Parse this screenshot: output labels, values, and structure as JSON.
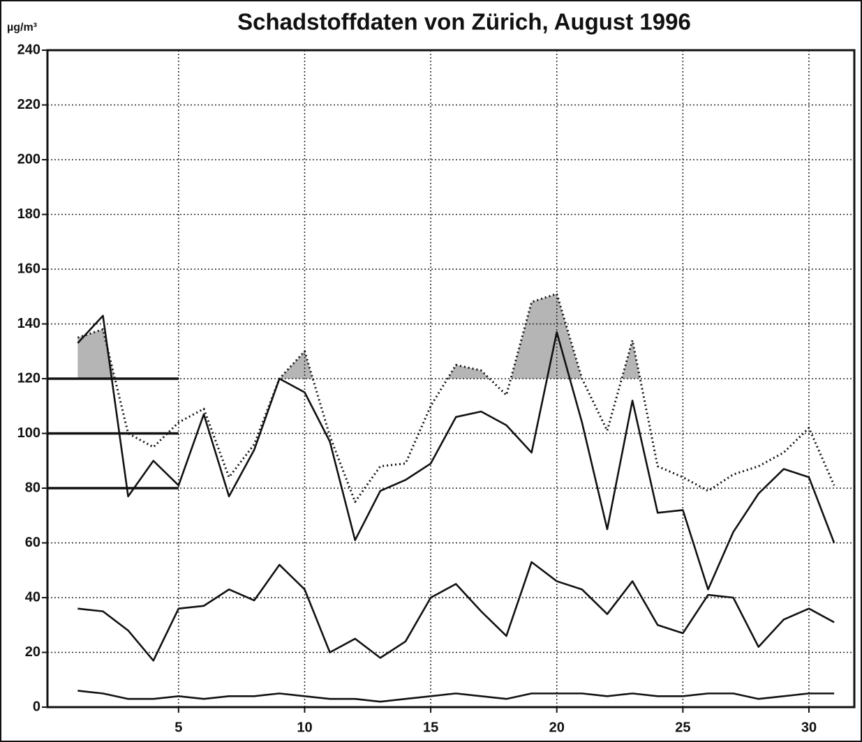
{
  "chart_data": {
    "type": "line",
    "title": "Schadstoffdaten von Zürich, August 1996",
    "y_label": "µg/m³",
    "x": [
      1,
      2,
      3,
      4,
      5,
      6,
      7,
      8,
      9,
      10,
      11,
      12,
      13,
      14,
      15,
      16,
      17,
      18,
      19,
      20,
      21,
      22,
      23,
      24,
      25,
      26,
      27,
      28,
      29,
      30,
      31
    ],
    "xlim": [
      -0.2,
      31.8
    ],
    "xticks": [
      5,
      10,
      15,
      20,
      25,
      30
    ],
    "ylim": [
      0,
      240
    ],
    "yticks": [
      0,
      20,
      40,
      60,
      80,
      100,
      120,
      140,
      160,
      180,
      200,
      220,
      240
    ],
    "grid": true,
    "thresholds": [
      120,
      100,
      80
    ],
    "threshold_until": 5,
    "shade_above": 120,
    "shade_color": "#b5b5b5",
    "series": [
      {
        "color": "#111111",
        "style": "dotted",
        "shade": true,
        "values": [
          135,
          138,
          100,
          95,
          104,
          109,
          84,
          96,
          120,
          130,
          99,
          75,
          88,
          89,
          110,
          125,
          123,
          114,
          148,
          151,
          120,
          101,
          134,
          88,
          84,
          79,
          85,
          88,
          93,
          102,
          81
        ]
      },
      {
        "color": "#111111",
        "style": "solid",
        "values": [
          133,
          143,
          77,
          90,
          81,
          107,
          77,
          94,
          120,
          115,
          97,
          61,
          79,
          83,
          89,
          106,
          108,
          103,
          93,
          137,
          104,
          65,
          112,
          71,
          72,
          43,
          64,
          78,
          87,
          84,
          60
        ]
      },
      {
        "color": "#111111",
        "style": "solid",
        "values": [
          36,
          35,
          28,
          17,
          36,
          37,
          43,
          39,
          52,
          43,
          20,
          25,
          18,
          24,
          40,
          45,
          35,
          26,
          53,
          46,
          43,
          34,
          46,
          30,
          27,
          41,
          40,
          22,
          32,
          36,
          31
        ]
      },
      {
        "color": "#111111",
        "style": "solid",
        "values": [
          6,
          5,
          3,
          3,
          4,
          3,
          4,
          4,
          5,
          4,
          3,
          3,
          2,
          3,
          4,
          5,
          4,
          3,
          5,
          5,
          5,
          4,
          5,
          4,
          4,
          5,
          5,
          3,
          4,
          5,
          5
        ]
      }
    ]
  }
}
